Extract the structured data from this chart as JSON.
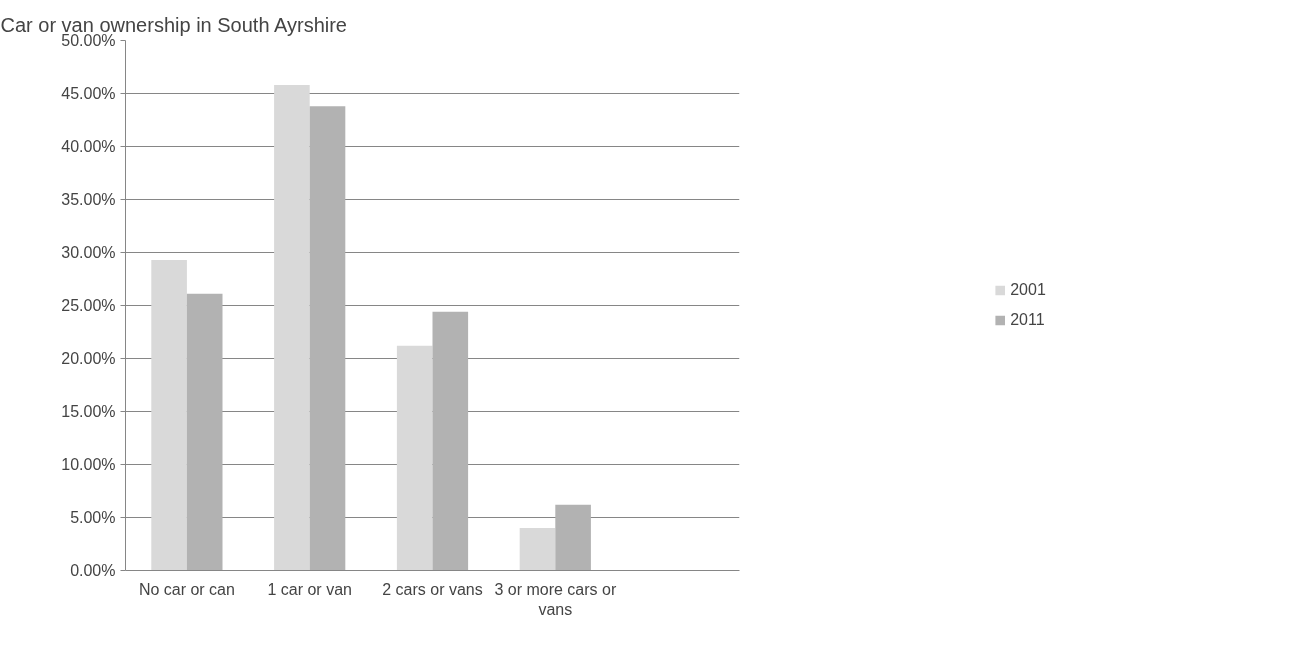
{
  "chart_data": {
    "type": "bar",
    "title": "Car or van ownership in South Ayrshire",
    "categories": [
      "No car or can",
      "1 car or van",
      "2 cars or vans",
      "3 or more cars or\nvans",
      null
    ],
    "series": [
      {
        "name": "2001",
        "color": "#d9d9d9",
        "values": [
          29.3,
          45.8,
          21.2,
          4.0,
          null
        ]
      },
      {
        "name": "2011",
        "color": "#b2b2b2",
        "values": [
          26.1,
          43.8,
          24.4,
          6.2,
          null
        ]
      }
    ],
    "ylim": [
      0,
      50
    ],
    "yticks": [
      {
        "value": 0,
        "label": "0.00%"
      },
      {
        "value": 5,
        "label": "5.00%"
      },
      {
        "value": 10,
        "label": "10.00%"
      },
      {
        "value": 15,
        "label": "15.00%"
      },
      {
        "value": 20,
        "label": "20.00%"
      },
      {
        "value": 25,
        "label": "25.00%"
      },
      {
        "value": 30,
        "label": "30.00%"
      },
      {
        "value": 35,
        "label": "35.00%"
      },
      {
        "value": 40,
        "label": "40.00%"
      },
      {
        "value": 45,
        "label": "45.00%"
      },
      {
        "value": 50,
        "label": "50.00%"
      }
    ],
    "grid": "y",
    "legend": "right"
  }
}
